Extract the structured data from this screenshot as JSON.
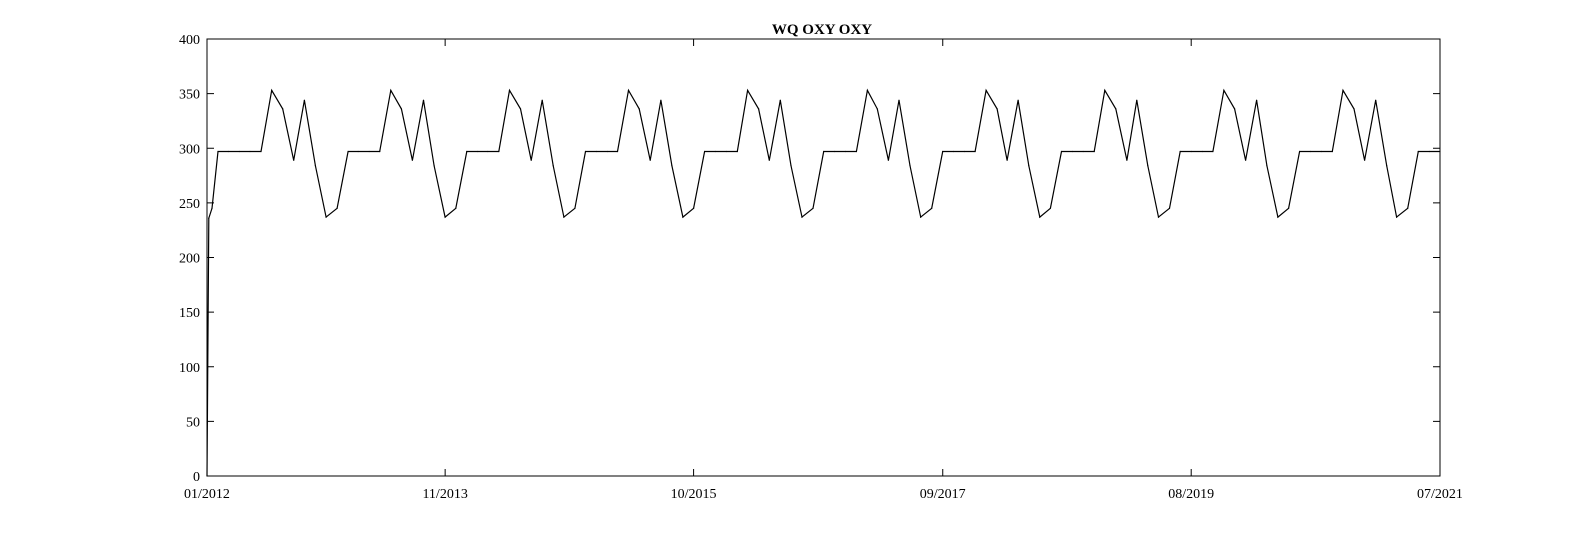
{
  "chart_data": {
    "type": "line",
    "title": "WQ OXY OXY",
    "xlabel": "",
    "ylabel": "",
    "x_range": [
      "2012-01",
      "2021-07"
    ],
    "ylim": [
      0,
      400
    ],
    "y_ticks": [
      0,
      50,
      100,
      150,
      200,
      250,
      300,
      350,
      400
    ],
    "x_ticks": [
      {
        "date": "2012-01",
        "label": "01/2012"
      },
      {
        "date": "2013-11",
        "label": "11/2013"
      },
      {
        "date": "2015-10",
        "label": "10/2015"
      },
      {
        "date": "2017-09",
        "label": "09/2017"
      },
      {
        "date": "2019-08",
        "label": "08/2019"
      },
      {
        "date": "2021-07",
        "label": "07/2021"
      }
    ],
    "grid": false,
    "line_color": "#000000",
    "series": [
      {
        "x": [
          "2012-01-01",
          "2012-01-06",
          "2012-01-15",
          "2012-02-01",
          "2012-03-01",
          "2012-04-01",
          "2012-05-01",
          "2012-06-01",
          "2012-07-01",
          "2012-08-01",
          "2012-09-01",
          "2012-10-01",
          "2012-11-01",
          "2012-12-01",
          "2013-01-01",
          "2013-02-01",
          "2013-03-01",
          "2013-04-01",
          "2013-05-01",
          "2013-06-01",
          "2013-07-01",
          "2013-08-01",
          "2013-09-01",
          "2013-10-01",
          "2013-11-01",
          "2013-12-01",
          "2014-01-01",
          "2014-02-01",
          "2014-03-01",
          "2014-04-01",
          "2014-05-01",
          "2014-06-01",
          "2014-07-01",
          "2014-08-01",
          "2014-09-01",
          "2014-10-01",
          "2014-11-01",
          "2014-12-01",
          "2015-01-01",
          "2015-02-01",
          "2015-03-01",
          "2015-04-01",
          "2015-05-01",
          "2015-06-01",
          "2015-07-01",
          "2015-08-01",
          "2015-09-01",
          "2015-10-01",
          "2015-11-01",
          "2015-12-01",
          "2016-01-01",
          "2016-02-01",
          "2016-03-01",
          "2016-04-01",
          "2016-05-01",
          "2016-06-01",
          "2016-07-01",
          "2016-08-01",
          "2016-09-01",
          "2016-10-01",
          "2016-11-01",
          "2016-12-01",
          "2017-01-01",
          "2017-02-01",
          "2017-03-01",
          "2017-04-01",
          "2017-05-01",
          "2017-06-01",
          "2017-07-01",
          "2017-08-01",
          "2017-09-01",
          "2017-10-01",
          "2017-11-01",
          "2017-12-01",
          "2018-01-01",
          "2018-02-01",
          "2018-03-01",
          "2018-04-01",
          "2018-05-01",
          "2018-06-01",
          "2018-07-01",
          "2018-08-01",
          "2018-09-01",
          "2018-10-01",
          "2018-11-01",
          "2018-12-01",
          "2019-01-01",
          "2019-02-01",
          "2019-03-01",
          "2019-04-01",
          "2019-05-01",
          "2019-06-01",
          "2019-07-01",
          "2019-08-01",
          "2019-09-01",
          "2019-10-01",
          "2019-11-01",
          "2019-12-01",
          "2020-01-01",
          "2020-02-01",
          "2020-03-01",
          "2020-04-01",
          "2020-05-01",
          "2020-06-01",
          "2020-07-01",
          "2020-08-01",
          "2020-09-01",
          "2020-10-01",
          "2020-11-01",
          "2020-12-01",
          "2021-01-01",
          "2021-02-01",
          "2021-03-01",
          "2021-04-01",
          "2021-05-01",
          "2021-06-01",
          "2021-07-01"
        ],
        "values": [
          0,
          236,
          245,
          297,
          297,
          297,
          297,
          297,
          353,
          336,
          289,
          344,
          284,
          237,
          245,
          297,
          297,
          297,
          297,
          353,
          336,
          289,
          344,
          284,
          237,
          245,
          297,
          297,
          297,
          297,
          353,
          336,
          289,
          344,
          284,
          237,
          245,
          297,
          297,
          297,
          297,
          353,
          336,
          289,
          344,
          284,
          237,
          245,
          297,
          297,
          297,
          297,
          353,
          336,
          289,
          344,
          284,
          237,
          245,
          297,
          297,
          297,
          297,
          353,
          336,
          289,
          344,
          284,
          237,
          245,
          297,
          297,
          297,
          297,
          353,
          336,
          289,
          344,
          284,
          237,
          245,
          297,
          297,
          297,
          297,
          353,
          336,
          289,
          344,
          284,
          237,
          245,
          297,
          297,
          297,
          297,
          353,
          336,
          289,
          344,
          284,
          237,
          245,
          297,
          297,
          297,
          297,
          353,
          336,
          289,
          344,
          284,
          237,
          245,
          297,
          297,
          297
        ]
      }
    ]
  }
}
